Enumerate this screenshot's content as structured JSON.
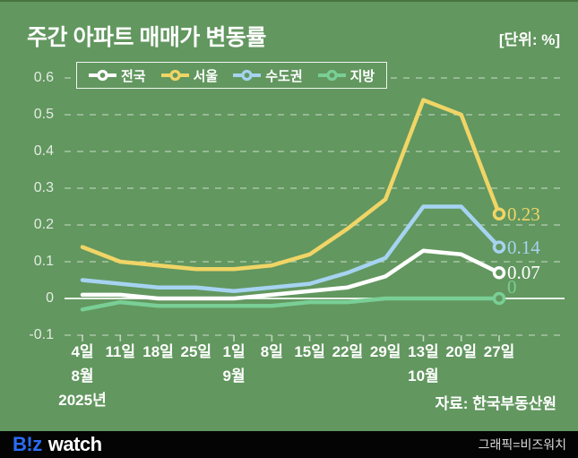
{
  "header": {
    "title": "주간 아파트 매매가 변동률",
    "unit_label": "[단위: %]"
  },
  "source_label": "자료: 한국부동산원",
  "footer": {
    "logo_biz": "B!z",
    "logo_watch": "watch",
    "credit": "그래픽=비즈워치"
  },
  "colors": {
    "background": "#62975f",
    "grid": "rgba(255,255,255,0.45)",
    "zero_line": "rgba(255,255,255,0.85)",
    "tick": "rgba(255,255,255,0.6)",
    "logo_blue": "#2a6df5"
  },
  "chart_data": {
    "type": "line",
    "title": "주간 아파트 매매가 변동률",
    "unit": "%",
    "x_tick_labels": [
      "4일",
      "11일",
      "18일",
      "25일",
      "1일",
      "8일",
      "15일",
      "22일",
      "29일",
      "13일",
      "20일",
      "27일"
    ],
    "month_labels": [
      {
        "text": "8월",
        "index": 0
      },
      {
        "text": "9월",
        "index": 4
      },
      {
        "text": "10월",
        "index": 9
      }
    ],
    "year_label": {
      "text": "2025년",
      "index": 0
    },
    "y_ticks": [
      0.6,
      0.5,
      0.4,
      0.3,
      0.2,
      0.1,
      0,
      -0.1
    ],
    "y_tick_labels": [
      "0.6",
      "0.5",
      "0.4",
      "0.3",
      "0.2",
      "0.1",
      "0",
      "-0.1"
    ],
    "ylim": [
      -0.1,
      0.6
    ],
    "grid": "dashed",
    "legend_position": "top",
    "series": [
      {
        "id": "jeonguk",
        "name": "전국",
        "color": "#ffffff",
        "values": [
          0.01,
          0.01,
          0.0,
          0.0,
          0.0,
          0.01,
          0.02,
          0.03,
          0.06,
          0.13,
          0.12,
          0.07
        ],
        "end_label": "0.07",
        "end_label_dy": 0
      },
      {
        "id": "seoul",
        "name": "서울",
        "color": "#f0d566",
        "values": [
          0.14,
          0.1,
          0.09,
          0.08,
          0.08,
          0.09,
          0.12,
          0.19,
          0.27,
          0.54,
          0.5,
          0.23
        ],
        "end_label": "0.23",
        "end_label_dy": 0
      },
      {
        "id": "sudogwon",
        "name": "수도권",
        "color": "#a6d3f1",
        "values": [
          0.05,
          0.04,
          0.03,
          0.03,
          0.02,
          0.03,
          0.04,
          0.07,
          0.11,
          0.25,
          0.25,
          0.14
        ],
        "end_label": "0.14",
        "end_label_dy": 0
      },
      {
        "id": "jibang",
        "name": "지방",
        "color": "#79cf95",
        "values": [
          -0.03,
          -0.01,
          -0.02,
          -0.02,
          -0.02,
          -0.02,
          -0.01,
          -0.01,
          0.0,
          0.0,
          0.0,
          0.0
        ],
        "end_label": "0",
        "end_label_dy": -13
      }
    ],
    "legend_order": [
      "jeonguk",
      "seoul",
      "sudogwon",
      "jibang"
    ]
  }
}
